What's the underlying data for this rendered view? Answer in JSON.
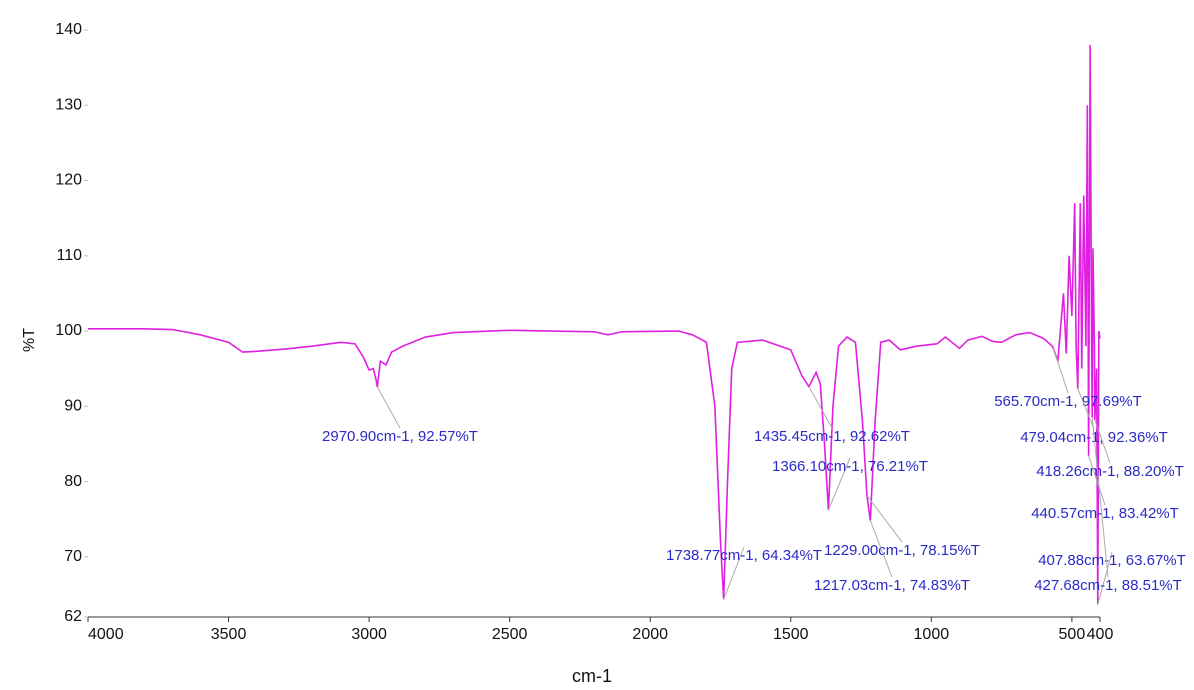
{
  "chart_data": {
    "type": "line",
    "x_label": "cm-1",
    "y_label": "%T",
    "xlim": [
      4000,
      400
    ],
    "ylim": [
      62,
      140
    ],
    "xticks": [
      4000,
      3500,
      3000,
      2500,
      2000,
      1500,
      1000,
      500,
      400
    ],
    "yticks": [
      62,
      70,
      80,
      90,
      100,
      110,
      120,
      130,
      140
    ],
    "grid": false,
    "series": [
      {
        "color": "#e020e0",
        "x": [
          4000,
          3800,
          3700,
          3600,
          3500,
          3450,
          3400,
          3300,
          3200,
          3100,
          3050,
          3020,
          3000,
          2985,
          2975,
          2970.9,
          2960,
          2940,
          2920,
          2880,
          2800,
          2700,
          2500,
          2200,
          2150,
          2100,
          1900,
          1850,
          1800,
          1770,
          1750,
          1738.77,
          1725,
          1710,
          1690,
          1600,
          1500,
          1460,
          1435.45,
          1410,
          1395,
          1380,
          1366.1,
          1350,
          1330,
          1300,
          1270,
          1245,
          1229.0,
          1217.03,
          1200,
          1180,
          1150,
          1110,
          1050,
          980,
          950,
          900,
          870,
          820,
          780,
          750,
          700,
          650,
          600,
          570,
          565.7,
          550,
          530,
          520,
          510,
          500,
          490,
          485,
          479.04,
          470,
          465,
          458,
          450,
          445,
          440.57,
          435,
          430,
          427.68,
          425,
          420,
          418.26,
          412,
          407.88,
          404,
          400
        ],
        "values": [
          100.3,
          100.3,
          100.2,
          99.5,
          98.5,
          97.2,
          97.3,
          97.6,
          98.0,
          98.5,
          98.3,
          96.5,
          94.8,
          95,
          93.5,
          92.57,
          96,
          95.5,
          97.2,
          98,
          99.2,
          99.8,
          100.1,
          99.9,
          99.5,
          99.9,
          100,
          99.5,
          98.5,
          90,
          72,
          64.34,
          80,
          95,
          98.5,
          98.8,
          97.5,
          94,
          92.62,
          94.5,
          93,
          85,
          76.21,
          90,
          98,
          99.2,
          98.5,
          88,
          78.15,
          74.83,
          88,
          98.5,
          98.8,
          97.5,
          98,
          98.3,
          99.2,
          97.7,
          98.8,
          99.3,
          98.6,
          98.5,
          99.5,
          99.8,
          99,
          98,
          97.69,
          96,
          105,
          97,
          110,
          102,
          117,
          98,
          92.36,
          117,
          95,
          118,
          98,
          130,
          83.42,
          138,
          100,
          88.51,
          111,
          98,
          88.2,
          95,
          63.67,
          100,
          99
        ]
      }
    ],
    "annotations": [
      {
        "text": "2970.90cm-1, 92.57%T",
        "x": 2970.9,
        "y": 92.57
      },
      {
        "text": "1435.45cm-1, 92.62%T",
        "x": 1435.45,
        "y": 92.62
      },
      {
        "text": "1366.10cm-1, 76.21%T",
        "x": 1366.1,
        "y": 76.21
      },
      {
        "text": "1738.77cm-1, 64.34%T",
        "x": 1738.77,
        "y": 64.34
      },
      {
        "text": "1229.00cm-1, 78.15%T",
        "x": 1229.0,
        "y": 78.15
      },
      {
        "text": "1217.03cm-1, 74.83%T",
        "x": 1217.03,
        "y": 74.83
      },
      {
        "text": "565.70cm-1, 97.69%T",
        "x": 565.7,
        "y": 97.69
      },
      {
        "text": "479.04cm-1, 92.36%T",
        "x": 479.04,
        "y": 92.36
      },
      {
        "text": "418.26cm-1, 88.20%T",
        "x": 418.26,
        "y": 88.2
      },
      {
        "text": "440.57cm-1, 83.42%T",
        "x": 440.57,
        "y": 83.42
      },
      {
        "text": "407.88cm-1, 63.67%T",
        "x": 407.88,
        "y": 63.67
      },
      {
        "text": "427.68cm-1, 88.51%T",
        "x": 427.68,
        "y": 88.51
      }
    ]
  }
}
